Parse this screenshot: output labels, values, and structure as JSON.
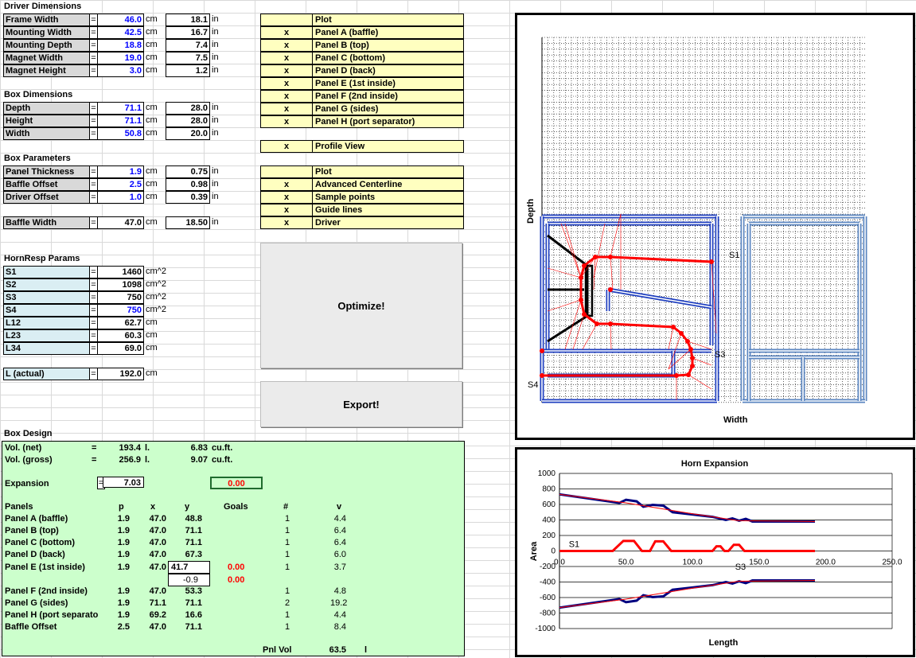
{
  "driver": {
    "header": "Driver Dimensions",
    "rows": [
      {
        "label": "Frame Width",
        "cm": "46.0",
        "cm_unit": "cm",
        "in": "18.1",
        "in_unit": "in"
      },
      {
        "label": "Mounting Width",
        "cm": "42.5",
        "cm_unit": "cm",
        "in": "16.7",
        "in_unit": "in"
      },
      {
        "label": "Mounting Depth",
        "cm": "18.8",
        "cm_unit": "cm",
        "in": "7.4",
        "in_unit": "in"
      },
      {
        "label": "Magnet Width",
        "cm": "19.0",
        "cm_unit": "cm",
        "in": "7.5",
        "in_unit": "in"
      },
      {
        "label": "Magnet Height",
        "cm": "3.0",
        "cm_unit": "cm",
        "in": "1.2",
        "in_unit": "in"
      }
    ]
  },
  "box": {
    "header": "Box Dimensions",
    "rows": [
      {
        "label": "Depth",
        "cm": "71.1",
        "cm_unit": "cm",
        "in": "28.0",
        "in_unit": "in"
      },
      {
        "label": "Height",
        "cm": "71.1",
        "cm_unit": "cm",
        "in": "28.0",
        "in_unit": "in"
      },
      {
        "label": "Width",
        "cm": "50.8",
        "cm_unit": "cm",
        "in": "20.0",
        "in_unit": "in"
      }
    ]
  },
  "params": {
    "header": "Box Parameters",
    "rows": [
      {
        "label": "Panel Thickness",
        "cm": "1.9",
        "cm_unit": "cm",
        "in": "0.75",
        "in_unit": "in"
      },
      {
        "label": "Baffle Offset",
        "cm": "2.5",
        "cm_unit": "cm",
        "in": "0.98",
        "in_unit": "in"
      },
      {
        "label": "Driver Offset",
        "cm": "1.0",
        "cm_unit": "cm",
        "in": "0.39",
        "in_unit": "in"
      }
    ],
    "baffle": {
      "label": "Baffle Width",
      "cm": "47.0",
      "cm_unit": "cm",
      "in": "18.50",
      "in_unit": "in"
    }
  },
  "eq": "=",
  "hornresp": {
    "header": "HornResp Params",
    "rows": [
      {
        "label": "S1",
        "value": "1460",
        "unit": "cm^2",
        "blue": false
      },
      {
        "label": "S2",
        "value": "1098",
        "unit": "cm^2",
        "blue": false
      },
      {
        "label": "S3",
        "value": "750",
        "unit": "cm^2",
        "blue": false
      },
      {
        "label": "S4",
        "value": "750",
        "unit": "cm^2",
        "blue": true
      },
      {
        "label": "L12",
        "value": "62.7",
        "unit": "cm",
        "blue": false
      },
      {
        "label": "L23",
        "value": "60.3",
        "unit": "cm",
        "blue": false
      },
      {
        "label": "L34",
        "value": "69.0",
        "unit": "cm",
        "blue": false
      }
    ],
    "actual": {
      "label": "L (actual)",
      "value": "192.0",
      "unit": "cm"
    }
  },
  "plot_panels": {
    "header": "Plot",
    "rows": [
      {
        "mark": "x",
        "label": "Panel A (baffle)"
      },
      {
        "mark": "x",
        "label": "Panel B (top)"
      },
      {
        "mark": "x",
        "label": "Panel C (bottom)"
      },
      {
        "mark": "x",
        "label": "Panel D (back)"
      },
      {
        "mark": "x",
        "label": "Panel E (1st inside)"
      },
      {
        "mark": "x",
        "label": "Panel F (2nd inside)"
      },
      {
        "mark": "x",
        "label": "Panel G (sides)"
      },
      {
        "mark": "x",
        "label": "Panel H (port separator)"
      }
    ],
    "profile": {
      "mark": "x",
      "label": "Profile View"
    }
  },
  "plot_opts": {
    "header": "Plot",
    "rows": [
      {
        "mark": "x",
        "label": "Advanced Centerline"
      },
      {
        "mark": "x",
        "label": "Sample points"
      },
      {
        "mark": "x",
        "label": "Guide lines"
      },
      {
        "mark": "x",
        "label": "Driver"
      }
    ]
  },
  "buttons": {
    "optimize": "Optimize!",
    "export": "Export!"
  },
  "design": {
    "header": "Box Design",
    "vol_net": {
      "label": "Vol. (net)",
      "eq": "=",
      "l": "193.4",
      "l_unit": "l.",
      "cuft": "6.83",
      "cuft_unit": "cu.ft."
    },
    "vol_gross": {
      "label": "Vol. (gross)",
      "eq": "=",
      "l": "256.9",
      "l_unit": "l.",
      "cuft": "9.07",
      "cuft_unit": "cu.ft."
    },
    "expansion": {
      "label": "Expansion",
      "eq": "=",
      "value": "7.03",
      "result": "0.00"
    },
    "cols": {
      "panels": "Panels",
      "p": "p",
      "x": "x",
      "y": "y",
      "goals": "Goals",
      "n": "#",
      "v": "v"
    },
    "panels": [
      {
        "name": "Panel A (baffle)",
        "p": "1.9",
        "x": "47.0",
        "y": "48.8",
        "goal": "",
        "n": "1",
        "v": "4.4"
      },
      {
        "name": "Panel B (top)",
        "p": "1.9",
        "x": "47.0",
        "y": "71.1",
        "goal": "",
        "n": "1",
        "v": "6.4"
      },
      {
        "name": "Panel C (bottom)",
        "p": "1.9",
        "x": "47.0",
        "y": "71.1",
        "goal": "",
        "n": "1",
        "v": "6.4"
      },
      {
        "name": "Panel D (back)",
        "p": "1.9",
        "x": "47.0",
        "y": "67.3",
        "goal": "",
        "n": "1",
        "v": "6.0"
      },
      {
        "name": "Panel E (1st inside)",
        "p": "1.9",
        "x": "47.0",
        "y": "41.7",
        "goal": "0.00",
        "n": "1",
        "v": "3.7"
      }
    ],
    "panel_e_extra": {
      "y": "-0.9",
      "goal": "0.00"
    },
    "panels2": [
      {
        "name": "Panel F (2nd inside)",
        "p": "1.9",
        "x": "47.0",
        "y": "53.3",
        "n": "1",
        "v": "4.8"
      },
      {
        "name": "Panel G (sides)",
        "p": "1.9",
        "x": "71.1",
        "y": "71.1",
        "n": "2",
        "v": "19.2"
      },
      {
        "name": "Panel H (port separato",
        "p": "1.9",
        "x": "69.2",
        "y": "16.6",
        "n": "1",
        "v": "4.4"
      },
      {
        "name": "Baffle Offset",
        "p": "2.5",
        "x": "47.0",
        "y": "71.1",
        "n": "1",
        "v": "8.4"
      }
    ],
    "pnl_vol": {
      "label": "Pnl Vol",
      "value": "63.5",
      "unit": "l"
    }
  },
  "profile_chart": {
    "xlabel": "Width",
    "ylabel": "Depth",
    "labels": {
      "s1": "S1",
      "s3": "S3",
      "s4": "S4"
    }
  },
  "chart_data": {
    "type": "line",
    "title": "Horn Expansion",
    "xlabel": "Length",
    "ylabel": "Area",
    "xlim": [
      0,
      250
    ],
    "ylim": [
      -1000,
      1000
    ],
    "xticks": [
      "0.0",
      "50.0",
      "100.0",
      "150.0",
      "200.0",
      "250.0"
    ],
    "yticks": [
      "1000",
      "800",
      "600",
      "400",
      "200",
      "0",
      "-200",
      "-400",
      "-600",
      "-800",
      "-1000"
    ],
    "annotations": [
      "S1",
      "S3"
    ],
    "series": [
      {
        "color": "#000080",
        "values": [
          [
            0,
            730
          ],
          [
            45,
            620
          ],
          [
            50,
            660
          ],
          [
            58,
            640
          ],
          [
            63,
            570
          ],
          [
            70,
            595
          ],
          [
            78,
            585
          ],
          [
            85,
            500
          ],
          [
            100,
            470
          ],
          [
            115,
            440
          ],
          [
            125,
            400
          ],
          [
            130,
            420
          ],
          [
            135,
            390
          ],
          [
            140,
            415
          ],
          [
            145,
            380
          ],
          [
            192,
            380
          ]
        ]
      },
      {
        "color": "#ff0000",
        "values": [
          [
            0,
            730
          ],
          [
            50,
            620
          ],
          [
            100,
            480
          ],
          [
            135,
            390
          ],
          [
            192,
            380
          ]
        ]
      },
      {
        "color": "#ff0000",
        "values": [
          [
            0,
            0
          ],
          [
            40,
            0
          ],
          [
            48,
            130
          ],
          [
            56,
            130
          ],
          [
            62,
            0
          ],
          [
            68,
            0
          ],
          [
            72,
            125
          ],
          [
            78,
            125
          ],
          [
            84,
            0
          ],
          [
            115,
            0
          ],
          [
            118,
            60
          ],
          [
            121,
            60
          ],
          [
            124,
            0
          ],
          [
            127,
            0
          ],
          [
            131,
            80
          ],
          [
            135,
            80
          ],
          [
            139,
            0
          ],
          [
            192,
            0
          ]
        ]
      },
      {
        "color": "#000080",
        "values": [
          [
            0,
            -730
          ],
          [
            45,
            -620
          ],
          [
            50,
            -660
          ],
          [
            58,
            -640
          ],
          [
            63,
            -570
          ],
          [
            70,
            -595
          ],
          [
            78,
            -585
          ],
          [
            85,
            -500
          ],
          [
            100,
            -470
          ],
          [
            115,
            -440
          ],
          [
            125,
            -400
          ],
          [
            130,
            -420
          ],
          [
            135,
            -390
          ],
          [
            140,
            -415
          ],
          [
            145,
            -380
          ],
          [
            192,
            -380
          ]
        ]
      },
      {
        "color": "#ff0000",
        "values": [
          [
            0,
            -730
          ],
          [
            50,
            -620
          ],
          [
            100,
            -480
          ],
          [
            135,
            -390
          ],
          [
            192,
            -380
          ]
        ]
      }
    ]
  }
}
